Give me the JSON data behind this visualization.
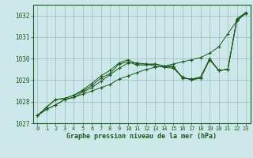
{
  "title": "",
  "xlabel": "Graphe pression niveau de la mer (hPa)",
  "bg_color": "#cce8eb",
  "grid_color": "#99bbbb",
  "line_color": "#1a5c1a",
  "xlim": [
    -0.5,
    23.5
  ],
  "ylim": [
    1027.0,
    1032.5
  ],
  "yticks": [
    1027,
    1028,
    1029,
    1030,
    1031,
    1032
  ],
  "xticks": [
    0,
    1,
    2,
    3,
    4,
    5,
    6,
    7,
    8,
    9,
    10,
    11,
    12,
    13,
    14,
    15,
    16,
    17,
    18,
    19,
    20,
    21,
    22,
    23
  ],
  "series": [
    [
      1027.35,
      1027.65,
      1027.85,
      1028.1,
      1028.2,
      1028.35,
      1028.5,
      1028.65,
      1028.8,
      1029.05,
      1029.2,
      1029.35,
      1029.5,
      1029.6,
      1029.65,
      1029.75,
      1029.85,
      1029.95,
      1030.05,
      1030.25,
      1030.55,
      1031.15,
      1031.75,
      1032.1
    ],
    [
      1027.35,
      1027.65,
      1027.85,
      1028.1,
      1028.2,
      1028.45,
      1028.65,
      1028.95,
      1029.25,
      1029.55,
      1029.8,
      1029.8,
      1029.75,
      1029.65,
      1029.6,
      1029.55,
      1029.15,
      1029.0,
      1029.1,
      1029.95,
      1029.45,
      1029.5,
      1031.8,
      1032.1
    ],
    [
      1027.35,
      1027.75,
      1028.1,
      1028.15,
      1028.3,
      1028.5,
      1028.75,
      1029.1,
      1029.3,
      1029.75,
      1029.85,
      1029.7,
      1029.7,
      1029.75,
      1029.65,
      1029.6,
      1029.1,
      1029.05,
      1029.1,
      1029.95,
      1029.45,
      1029.5,
      1031.85,
      1032.15
    ],
    [
      1027.35,
      1027.75,
      1028.1,
      1028.15,
      1028.3,
      1028.55,
      1028.85,
      1029.2,
      1029.45,
      1029.8,
      1029.95,
      1029.75,
      1029.75,
      1029.75,
      1029.65,
      1029.65,
      1029.1,
      1029.05,
      1029.15,
      1030.0,
      1029.45,
      1029.5,
      1031.8,
      1032.1
    ]
  ]
}
